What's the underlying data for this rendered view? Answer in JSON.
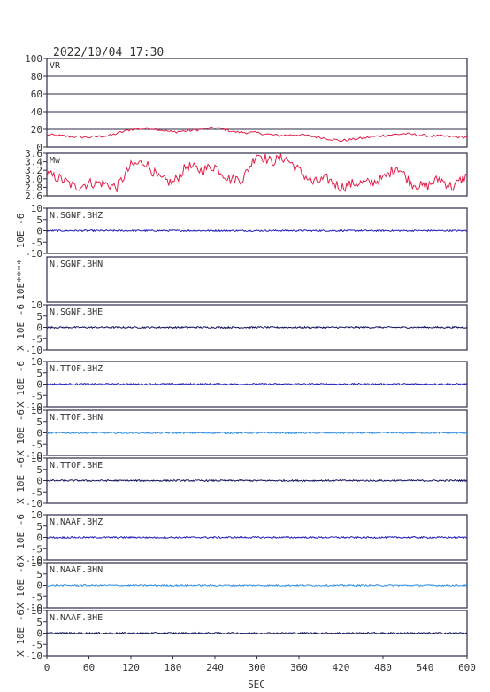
{
  "title": "2022/10/04  17:30",
  "xaxis": {
    "label": "SEC",
    "ticks": [
      0,
      60,
      120,
      180,
      240,
      300,
      360,
      420,
      480,
      540,
      600
    ],
    "range": [
      0,
      600
    ]
  },
  "chart_data": [
    {
      "type": "line",
      "label": "VR",
      "ylim": [
        0,
        100
      ],
      "yticks": [
        "100",
        "80",
        "60",
        "40",
        "20",
        "0"
      ],
      "ytick_values": [
        100,
        80,
        60,
        40,
        20,
        0
      ],
      "grid": true,
      "color": "#e0204a",
      "series": [
        {
          "x": [
            0,
            30,
            60,
            90,
            120,
            150,
            180,
            210,
            240,
            270,
            300,
            330,
            360,
            390,
            420,
            450,
            480,
            510,
            540,
            570,
            600
          ],
          "values": [
            14,
            12,
            11,
            13,
            20,
            21,
            17,
            19,
            22,
            17,
            16,
            13,
            14,
            11,
            7,
            10,
            13,
            15,
            13,
            12,
            11
          ]
        }
      ]
    },
    {
      "type": "line",
      "label": "Mw",
      "ylim": [
        2.6,
        3.6
      ],
      "yticks": [
        "3.6",
        "3.4",
        "3.2",
        "3.0",
        "2.8",
        "2.6"
      ],
      "ytick_values": [
        3.6,
        3.4,
        3.2,
        3.0,
        2.8,
        2.6
      ],
      "grid": false,
      "color": "#e0204a",
      "series": [
        {
          "x": [
            0,
            20,
            40,
            60,
            80,
            100,
            120,
            140,
            160,
            180,
            200,
            220,
            240,
            260,
            280,
            300,
            320,
            340,
            360,
            380,
            400,
            420,
            440,
            460,
            480,
            500,
            520,
            540,
            560,
            580,
            600
          ],
          "values": [
            3.1,
            3.0,
            2.8,
            2.9,
            2.9,
            2.8,
            3.3,
            3.4,
            3.0,
            2.9,
            3.3,
            3.2,
            3.3,
            3.0,
            3.0,
            3.6,
            3.4,
            3.5,
            3.2,
            2.9,
            3.0,
            2.8,
            2.9,
            2.9,
            3.0,
            3.3,
            2.9,
            2.8,
            3.0,
            2.8,
            3.1
          ]
        }
      ]
    },
    {
      "type": "line",
      "label": "N.SGNF.BHZ",
      "ylabel": "10E -6",
      "ylim": [
        -10,
        10
      ],
      "yticks": [
        "10",
        "5",
        "0",
        "-5",
        "-10"
      ],
      "ytick_values": [
        10,
        5,
        0,
        -5,
        -10
      ],
      "color": "#1c1cb4",
      "amplitude": 0.35
    },
    {
      "type": "line",
      "label": "N.SGNF.BHN",
      "ylabel": "10E****",
      "ylim": [
        -10,
        10
      ],
      "yticks": [],
      "ytick_values": [],
      "color": "#1c1cb4",
      "amplitude": 0
    },
    {
      "type": "line",
      "label": "N.SGNF.BHE",
      "ylabel": "X 10E -6",
      "ylim": [
        -10,
        10
      ],
      "yticks": [
        "10",
        "5",
        "0",
        "-5",
        "-10"
      ],
      "ytick_values": [
        10,
        5,
        0,
        -5,
        -10
      ],
      "color": "#10105a",
      "amplitude": 0.35
    },
    {
      "type": "line",
      "label": "N.TTOF.BHZ",
      "ylabel": "X 10E -6",
      "ylim": [
        -10,
        10
      ],
      "yticks": [
        "10",
        "5",
        "0",
        "-5",
        "-10"
      ],
      "ytick_values": [
        10,
        5,
        0,
        -5,
        -10
      ],
      "color": "#1c1cb4",
      "amplitude": 0.35
    },
    {
      "type": "line",
      "label": "N.TTOF.BHN",
      "ylabel": "X 10E -6",
      "ylim": [
        -10,
        10
      ],
      "yticks": [
        "10",
        "5",
        "0",
        "-5",
        "-10"
      ],
      "ytick_values": [
        10,
        5,
        0,
        -5,
        -10
      ],
      "color": "#2f8de0",
      "amplitude": 0.35
    },
    {
      "type": "line",
      "label": "N.TTOF.BHE",
      "ylabel": "X 10E -6",
      "ylim": [
        -10,
        10
      ],
      "yticks": [
        "10",
        "5",
        "0",
        "-5",
        "-10"
      ],
      "ytick_values": [
        10,
        5,
        0,
        -5,
        -10
      ],
      "color": "#10105a",
      "amplitude": 0.35
    },
    {
      "type": "line",
      "label": "N.NAAF.BHZ",
      "ylabel": "X 10E -6",
      "ylim": [
        -10,
        10
      ],
      "yticks": [
        "10",
        "5",
        "0",
        "-5",
        "-10"
      ],
      "ytick_values": [
        10,
        5,
        0,
        -5,
        -10
      ],
      "color": "#1c1cb4",
      "amplitude": 0.35
    },
    {
      "type": "line",
      "label": "N.NAAF.BHN",
      "ylabel": "X 10E -6",
      "ylim": [
        -10,
        10
      ],
      "yticks": [
        "10",
        "5",
        "0",
        "-5",
        "-10"
      ],
      "ytick_values": [
        10,
        5,
        0,
        -5,
        -10
      ],
      "color": "#2f8de0",
      "amplitude": 0.35
    },
    {
      "type": "line",
      "label": "N.NAAF.BHE",
      "ylabel": "X 10E -6",
      "ylim": [
        -10,
        10
      ],
      "yticks": [
        "10",
        "5",
        "0",
        "-5",
        "-10"
      ],
      "ytick_values": [
        10,
        5,
        0,
        -5,
        -10
      ],
      "color": "#10105a",
      "amplitude": 0.35
    }
  ]
}
